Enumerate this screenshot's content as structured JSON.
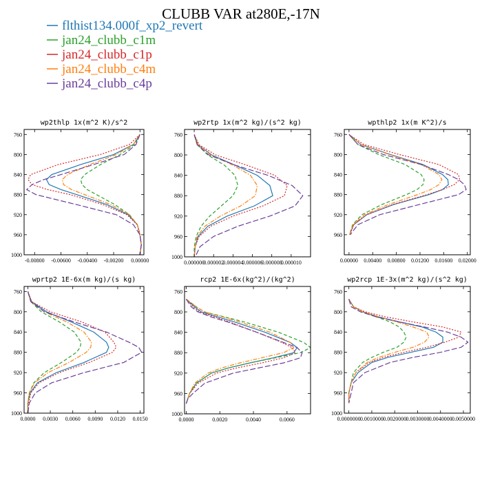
{
  "title": "CLUBB VAR at280E,-17N",
  "legend": [
    {
      "label": "flthist134.000f_xp2_revert",
      "color": "#1f77b4",
      "dash": "solid"
    },
    {
      "label": "jan24_clubb_c1m",
      "color": "#2ca02c",
      "dash": "dash"
    },
    {
      "label": "jan24_clubb_c1p",
      "color": "#d62728",
      "dash": "dot"
    },
    {
      "label": "jan24_clubb_c4m",
      "color": "#ff7f0e",
      "dash": "dashdot"
    },
    {
      "label": "jan24_clubb_c4p",
      "color": "#6a3d9a",
      "dash": "longdash"
    }
  ],
  "chart_data": [
    {
      "type": "line",
      "title": "wp2thlp  1x(m^2 K)/s^2",
      "xlim": [
        -0.0088,
        0.0003
      ],
      "ylim": [
        1000,
        750
      ],
      "xticks": [
        -0.008,
        -0.006,
        -0.004,
        -0.002,
        0.0
      ],
      "xticklabels": [
        "-0.00800",
        "-0.00600",
        "-0.00400",
        "-0.00200",
        "0.00000"
      ],
      "yticks": [
        760,
        800,
        840,
        880,
        920,
        960,
        1000
      ],
      "y": [
        760,
        780,
        800,
        820,
        840,
        850,
        860,
        870,
        880,
        900,
        920,
        940,
        960,
        980,
        1000
      ],
      "series": [
        {
          "color": "#1f77b4",
          "values": [
            0.0,
            -0.0005,
            -0.002,
            -0.0045,
            -0.0067,
            -0.0071,
            -0.0069,
            -0.006,
            -0.0048,
            -0.0025,
            -0.0009,
            -0.0002,
            0.0,
            0.0001,
            0.0
          ]
        },
        {
          "color": "#2ca02c",
          "values": [
            0.0,
            -0.0004,
            -0.0015,
            -0.003,
            -0.0042,
            -0.0045,
            -0.0044,
            -0.004,
            -0.0033,
            -0.0019,
            -0.0008,
            -0.0002,
            0.0,
            0.0001,
            0.0
          ]
        },
        {
          "color": "#d62728",
          "values": [
            0.0,
            -0.0008,
            -0.003,
            -0.0062,
            -0.0083,
            -0.0085,
            -0.0082,
            -0.007,
            -0.0053,
            -0.0028,
            -0.001,
            -0.0002,
            0.0,
            0.0001,
            0.0
          ]
        },
        {
          "color": "#ff7f0e",
          "values": [
            0.0,
            -0.0005,
            -0.0018,
            -0.0038,
            -0.0055,
            -0.0059,
            -0.0058,
            -0.0052,
            -0.0042,
            -0.0022,
            -0.0008,
            -0.0002,
            0.0,
            0.0001,
            0.0
          ]
        },
        {
          "color": "#6a3d9a",
          "values": [
            0.0,
            -0.0003,
            -0.0012,
            -0.0035,
            -0.006,
            -0.0073,
            -0.0082,
            -0.0086,
            -0.0079,
            -0.0048,
            -0.0018,
            -0.0005,
            0.0,
            0.0001,
            0.0
          ]
        }
      ]
    },
    {
      "type": "line",
      "title": "wp2rtp  1x(m^2 kg)/(s^2 kg)",
      "xlim": [
        -1e-06,
        1.2e-05
      ],
      "ylim": [
        1000,
        750
      ],
      "xticks": [
        0.0,
        2e-06,
        4e-06,
        6e-06,
        8e-06,
        1e-05
      ],
      "xticklabels": [
        "0.000000",
        "0.000002",
        "0.000004",
        "0.000006",
        "0.000008",
        "0.000010"
      ],
      "yticks": [
        760,
        800,
        840,
        880,
        920,
        960,
        1000
      ],
      "y": [
        760,
        780,
        800,
        820,
        840,
        860,
        880,
        900,
        920,
        940,
        960,
        980,
        1000
      ],
      "series": [
        {
          "color": "#1f77b4",
          "values": [
            0.0,
            4e-07,
            1.8e-06,
            4.2e-06,
            6.5e-06,
            7.8e-06,
            8.1e-06,
            6.2e-06,
            3.4e-06,
            1.4e-06,
            4e-07,
            1e-07,
            0.0
          ]
        },
        {
          "color": "#2ca02c",
          "values": [
            0.0,
            3e-07,
            1.4e-06,
            3.1e-06,
            4.2e-06,
            4.5e-06,
            4e-06,
            2.8e-06,
            1.6e-06,
            7e-07,
            2e-07,
            0.0,
            0.0
          ]
        },
        {
          "color": "#d62728",
          "values": [
            0.0,
            5e-07,
            2.2e-06,
            5.4e-06,
            8.3e-06,
            9.6e-06,
            9.3e-06,
            7.1e-06,
            4e-06,
            1.7e-06,
            5e-07,
            1e-07,
            0.0
          ]
        },
        {
          "color": "#ff7f0e",
          "values": [
            0.0,
            4e-07,
            1.7e-06,
            4e-06,
            5.8e-06,
            6.5e-06,
            6.3e-06,
            4.8e-06,
            2.7e-06,
            1.1e-06,
            3e-07,
            1e-07,
            0.0
          ]
        },
        {
          "color": "#6a3d9a",
          "values": [
            0.0,
            3e-07,
            1.5e-06,
            4.2e-06,
            7.6e-06,
            1.01e-05,
            1.12e-05,
            1.04e-05,
            7.8e-06,
            4.5e-06,
            2e-06,
            6e-07,
            1e-07
          ]
        }
      ]
    },
    {
      "type": "line",
      "title": "wpthlp2  1x(m K^2)/s",
      "xlim": [
        -0.0008,
        0.0205
      ],
      "ylim": [
        1000,
        750
      ],
      "xticks": [
        0.0,
        0.004,
        0.008,
        0.012,
        0.016,
        0.02
      ],
      "xticklabels": [
        "0.00000",
        "0.00400",
        "0.00800",
        "0.01200",
        "0.01600",
        "0.02000"
      ],
      "yticks": [
        760,
        800,
        840,
        880,
        920,
        960
      ],
      "y": [
        760,
        780,
        800,
        820,
        840,
        850,
        860,
        870,
        880,
        900,
        920,
        940,
        960
      ],
      "series": [
        {
          "color": "#1f77b4",
          "values": [
            0.0,
            0.002,
            0.007,
            0.0125,
            0.0158,
            0.0167,
            0.0168,
            0.0158,
            0.0135,
            0.0075,
            0.003,
            0.0008,
            0.0001
          ]
        },
        {
          "color": "#2ca02c",
          "values": [
            0.0,
            0.0015,
            0.005,
            0.0095,
            0.0122,
            0.0127,
            0.0125,
            0.0115,
            0.0097,
            0.0055,
            0.0022,
            0.0006,
            0.0001
          ]
        },
        {
          "color": "#d62728",
          "values": [
            0.0,
            0.0025,
            0.0085,
            0.0152,
            0.0185,
            0.0187,
            0.0178,
            0.0158,
            0.0132,
            0.0073,
            0.003,
            0.0008,
            0.0001
          ]
        },
        {
          "color": "#ff7f0e",
          "values": [
            0.0,
            0.002,
            0.0068,
            0.0122,
            0.0152,
            0.0157,
            0.0152,
            0.0138,
            0.0116,
            0.0066,
            0.0026,
            0.0007,
            0.0001
          ]
        },
        {
          "color": "#6a3d9a",
          "values": [
            0.0,
            0.0015,
            0.0058,
            0.0122,
            0.0168,
            0.0185,
            0.0195,
            0.0198,
            0.0185,
            0.0118,
            0.0052,
            0.0015,
            0.0002
          ]
        }
      ]
    },
    {
      "type": "line",
      "title": "wprtp2  1E-6x(m kg)/(s kg)",
      "xlim": [
        -0.0005,
        0.0155
      ],
      "ylim": [
        1000,
        750
      ],
      "xticks": [
        0.0,
        0.003,
        0.006,
        0.009,
        0.012,
        0.015
      ],
      "xticklabels": [
        "0.0000",
        "0.0030",
        "0.0060",
        "0.0090",
        "0.0120",
        "0.0150"
      ],
      "yticks": [
        760,
        800,
        840,
        880,
        920,
        960,
        1000
      ],
      "y": [
        760,
        780,
        800,
        820,
        840,
        860,
        870,
        880,
        900,
        920,
        940,
        960,
        980,
        1000
      ],
      "series": [
        {
          "color": "#1f77b4",
          "values": [
            0.0,
            0.0005,
            0.0025,
            0.0058,
            0.0088,
            0.0105,
            0.0108,
            0.0105,
            0.0075,
            0.0038,
            0.0013,
            0.0003,
            0.0,
            0.0
          ]
        },
        {
          "color": "#2ca02c",
          "values": [
            0.0,
            0.0004,
            0.0018,
            0.0042,
            0.0062,
            0.0071,
            0.007,
            0.0065,
            0.0045,
            0.0022,
            0.0008,
            0.0002,
            0.0,
            0.0
          ]
        },
        {
          "color": "#d62728",
          "values": [
            0.0,
            0.0005,
            0.003,
            0.0072,
            0.0103,
            0.0115,
            0.0118,
            0.0113,
            0.0082,
            0.0042,
            0.0015,
            0.0004,
            0.0001,
            0.0
          ]
        },
        {
          "color": "#ff7f0e",
          "values": [
            0.0,
            0.0004,
            0.0022,
            0.0052,
            0.0075,
            0.0085,
            0.0084,
            0.0078,
            0.0055,
            0.0027,
            0.0009,
            0.0002,
            0.0,
            0.0
          ]
        },
        {
          "color": "#6a3d9a",
          "values": [
            0.0,
            0.0004,
            0.0022,
            0.0062,
            0.0105,
            0.0135,
            0.0148,
            0.0152,
            0.0128,
            0.0075,
            0.0032,
            0.001,
            0.0002,
            0.0
          ]
        }
      ]
    },
    {
      "type": "line",
      "title": "rcp2  1E-6x(kg^2)/(kg^2)",
      "xlim": [
        -0.0001,
        0.0074
      ],
      "ylim": [
        1000,
        750
      ],
      "xticks": [
        0.0,
        0.002,
        0.004,
        0.006
      ],
      "xticklabels": [
        "0.0000",
        "0.0020",
        "0.0040",
        "0.0060"
      ],
      "yticks": [
        760,
        800,
        840,
        880,
        920,
        960,
        1000
      ],
      "y": [
        775,
        790,
        800,
        810,
        820,
        840,
        860,
        870,
        880,
        890,
        900,
        910,
        920,
        940,
        960,
        970,
        980
      ],
      "series": [
        {
          "color": "#1f77b4",
          "values": [
            0.0,
            0.0005,
            0.0009,
            0.0019,
            0.0029,
            0.0047,
            0.0062,
            0.0066,
            0.0064,
            0.0052,
            0.0038,
            0.0025,
            0.0015,
            0.0006,
            0.0002,
            0.0001,
            0.0
          ]
        },
        {
          "color": "#2ca02c",
          "values": [
            0.0,
            0.0006,
            0.0011,
            0.0023,
            0.0035,
            0.0055,
            0.007,
            0.0074,
            0.0068,
            0.0053,
            0.0038,
            0.0025,
            0.0015,
            0.0006,
            0.0002,
            0.0001,
            0.0
          ]
        },
        {
          "color": "#d62728",
          "values": [
            0.0,
            0.0004,
            0.0008,
            0.0017,
            0.0026,
            0.0042,
            0.0057,
            0.0063,
            0.0065,
            0.0058,
            0.0045,
            0.003,
            0.0018,
            0.0007,
            0.0002,
            0.0001,
            0.0
          ]
        },
        {
          "color": "#ff7f0e",
          "values": [
            0.0,
            0.0006,
            0.0011,
            0.0022,
            0.0032,
            0.005,
            0.0062,
            0.0064,
            0.0058,
            0.0045,
            0.0032,
            0.0021,
            0.0013,
            0.0005,
            0.0002,
            0.0001,
            0.0
          ]
        },
        {
          "color": "#6a3d9a",
          "values": [
            0.0,
            0.0003,
            0.0007,
            0.0015,
            0.0025,
            0.0042,
            0.0058,
            0.0066,
            0.0069,
            0.0068,
            0.0058,
            0.0043,
            0.0028,
            0.0011,
            0.0004,
            0.0001,
            0.0
          ]
        }
      ]
    },
    {
      "type": "line",
      "title": "wp2rcp  1E-3x(m^2 kg)/(s^2 kg)",
      "xlim": [
        -0.0002,
        0.0053
      ],
      "ylim": [
        1000,
        750
      ],
      "xticks": [
        0.0,
        0.001,
        0.002,
        0.003,
        0.004,
        0.005
      ],
      "xticklabels": [
        "0.0000000",
        "0.0010000",
        "0.0020000",
        "0.0030000",
        "0.0040000",
        "0.0050000"
      ],
      "yticks": [
        760,
        800,
        840,
        880,
        920,
        960,
        1000
      ],
      "y": [
        775,
        790,
        800,
        810,
        820,
        830,
        840,
        850,
        860,
        870,
        880,
        890,
        900,
        920,
        940,
        960,
        980
      ],
      "series": [
        {
          "color": "#1f77b4",
          "values": [
            0.0,
            0.0002,
            0.0006,
            0.0013,
            0.0022,
            0.0032,
            0.0038,
            0.0041,
            0.0041,
            0.0037,
            0.0027,
            0.0017,
            0.001,
            0.0004,
            0.0001,
            0.0,
            0.0
          ]
        },
        {
          "color": "#2ca02c",
          "values": [
            0.0,
            0.0002,
            0.0006,
            0.0012,
            0.0018,
            0.0022,
            0.0024,
            0.0025,
            0.0024,
            0.0021,
            0.0015,
            0.001,
            0.0006,
            0.0002,
            0.0001,
            0.0,
            0.0
          ]
        },
        {
          "color": "#d62728",
          "values": [
            0.0,
            0.0002,
            0.0007,
            0.0016,
            0.0028,
            0.0041,
            0.0049,
            0.0048,
            0.0042,
            0.0034,
            0.0024,
            0.0015,
            0.0009,
            0.0003,
            0.0001,
            0.0,
            0.0
          ]
        },
        {
          "color": "#ff7f0e",
          "values": [
            0.0,
            0.0002,
            0.0006,
            0.0013,
            0.0021,
            0.0028,
            0.0034,
            0.0035,
            0.0033,
            0.0028,
            0.002,
            0.0013,
            0.0008,
            0.0003,
            0.0001,
            0.0,
            0.0
          ]
        },
        {
          "color": "#6a3d9a",
          "values": [
            0.0,
            0.0001,
            0.0005,
            0.0012,
            0.0022,
            0.0033,
            0.0043,
            0.0049,
            0.0052,
            0.0049,
            0.004,
            0.0028,
            0.0018,
            0.0007,
            0.0002,
            0.0001,
            0.0
          ]
        }
      ]
    }
  ]
}
